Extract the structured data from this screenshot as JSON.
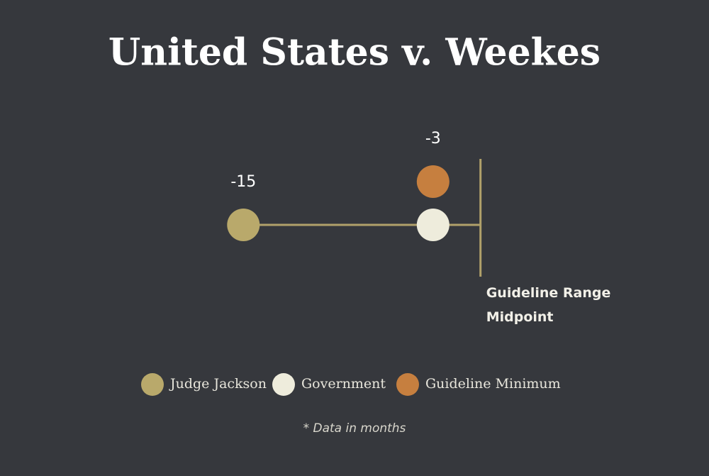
{
  "chart_data": {
    "type": "dot",
    "title": "United States v. Weekes",
    "series": [
      {
        "name": "Judge Jackson",
        "color": "#b9a96b",
        "values": [
          -15
        ],
        "value_labels": [
          "-15"
        ]
      },
      {
        "name": "Government",
        "color": "#eeecdc",
        "values": [
          -3
        ]
      },
      {
        "name": "Guideline Minimum",
        "color": "#c67f3f",
        "values": [
          -3
        ],
        "value_labels": [
          "-3"
        ]
      }
    ],
    "xlim": [
      -16,
      1
    ],
    "reference_line": {
      "value": 0,
      "label": "Guideline Range Midpoint",
      "color": "#b1a16a"
    },
    "footnote": "* Data in months"
  }
}
